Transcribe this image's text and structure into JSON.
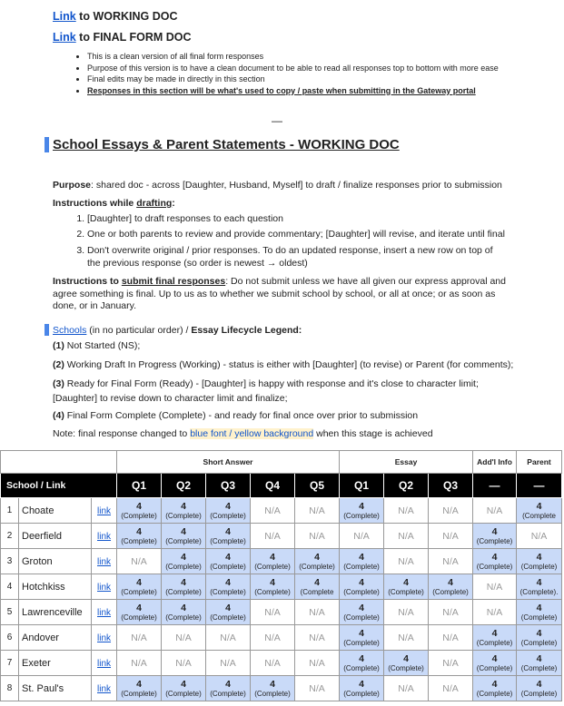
{
  "links": [
    {
      "link": "Link",
      "text": " to WORKING DOC"
    },
    {
      "link": "Link",
      "text": " to FINAL FORM DOC"
    }
  ],
  "bullets": [
    "This is a clean version of all final form responses",
    "Purpose of this version is to have a clean document to be able to read all responses top to bottom with more ease",
    "Final edits may be made in directly in this section",
    "Responses in this section will be what's used to copy / paste when submitting in the Gateway portal"
  ],
  "separator": "—",
  "heading": "School Essays & Parent Statements - WORKING DOC",
  "purpose": {
    "label": "Purpose",
    "text": ": shared doc - across [Daughter, Husband, Myself] to draft / finalize responses prior to submission"
  },
  "drafting": {
    "prefix": "Instructions while ",
    "emph": "drafting",
    "suffix": ":",
    "steps": [
      "[Daughter] to draft responses to each question",
      "One or both parents to review and provide commentary; [Daughter] will revise, and iterate until final",
      "Don't overwrite original / prior responses. To do an updated response, insert a new row on top of the previous response (so order is newest → oldest)"
    ]
  },
  "submit": {
    "prefix": "Instructions to ",
    "emph": "submit final responses",
    "text": ": Do not submit unless we have all given our express approval and agree something is final. Up to us as to whether we submit school by school, or all at once; or as soon as done, or in January."
  },
  "legend": {
    "link": "Schools",
    "text": " (in no particular order) / ",
    "title": "Essay Lifecycle Legend:",
    "stages": [
      {
        "num": "(1)",
        "text": " Not Started (NS);"
      },
      {
        "num": "(2)",
        "text": " Working Draft In Progress (Working) - status is either with [Daughter] (to revise) or Parent (for comments);"
      },
      {
        "num": "(3)",
        "text": " Ready for Final Form (Ready) - [Daughter] is happy with response and it's close to character limit; [Daughter] to revise down to character limit and finalize;"
      },
      {
        "num": "(4)",
        "text": " Final Form Complete (Complete) - and ready for final once over prior to submission"
      }
    ],
    "note": {
      "text": "Note: final response changed to ",
      "highlight": "blue font / yellow background",
      "suffix": " when this stage is achieved"
    }
  },
  "table": {
    "header_groups": [
      "Short Answer",
      "Essay",
      "Add'l Info",
      "Parent"
    ],
    "columns": [
      "School / Link",
      "Q1",
      "Q2",
      "Q3",
      "Q4",
      "Q5",
      "Q1",
      "Q2",
      "Q3",
      "—",
      "—"
    ],
    "rows": [
      {
        "num": 1,
        "school": "Choate",
        "link": "link",
        "cells": [
          {
            "score": 4,
            "status": "(Complete)"
          },
          {
            "score": 4,
            "status": "(Complete)"
          },
          {
            "score": 4,
            "status": "(Complete)"
          },
          "N/A",
          "N/A",
          {
            "score": 4,
            "status": "(Complete)"
          },
          "N/A",
          "N/A",
          "N/A",
          {
            "score": 4,
            "status": "(Complete"
          }
        ]
      },
      {
        "num": 2,
        "school": "Deerfield",
        "link": "link",
        "cells": [
          {
            "score": 4,
            "status": "(Complete)"
          },
          {
            "score": 4,
            "status": "(Complete)"
          },
          {
            "score": 4,
            "status": "(Complete)"
          },
          "N/A",
          "N/A",
          "N/A",
          "N/A",
          "N/A",
          {
            "score": 4,
            "status": "(Complete)"
          },
          "N/A"
        ]
      },
      {
        "num": 3,
        "school": "Groton",
        "link": "link",
        "cells": [
          "N/A",
          {
            "score": 4,
            "status": "(Complete)"
          },
          {
            "score": 4,
            "status": "(Complete)"
          },
          {
            "score": 4,
            "status": "(Complete)"
          },
          {
            "score": 4,
            "status": "(Complete)"
          },
          {
            "score": 4,
            "status": "(Complete)"
          },
          "N/A",
          "N/A",
          {
            "score": 4,
            "status": "(Complete)"
          },
          {
            "score": 4,
            "status": "(Complete)"
          }
        ]
      },
      {
        "num": 4,
        "school": "Hotchkiss",
        "link": "link",
        "cells": [
          {
            "score": 4,
            "status": "(Complete)"
          },
          {
            "score": 4,
            "status": "(Complete)"
          },
          {
            "score": 4,
            "status": "(Complete)"
          },
          {
            "score": 4,
            "status": "(Complete)"
          },
          {
            "score": 4,
            "status": "(Complete"
          },
          {
            "score": 4,
            "status": "(Complete)"
          },
          {
            "score": 4,
            "status": "(Complete)"
          },
          {
            "score": 4,
            "status": "(Complete)"
          },
          "N/A",
          {
            "score": 4,
            "status": "(Complete)."
          }
        ]
      },
      {
        "num": 5,
        "school": "Lawrenceville",
        "link": "link",
        "cells": [
          {
            "score": 4,
            "status": "(Complete)"
          },
          {
            "score": 4,
            "status": "(Complete)"
          },
          {
            "score": 4,
            "status": "(Complete)"
          },
          "N/A",
          "N/A",
          {
            "score": 4,
            "status": "(Complete)"
          },
          "N/A",
          "N/A",
          "N/A",
          {
            "score": 4,
            "status": "(Complete)"
          }
        ]
      },
      {
        "num": 6,
        "school": "Andover",
        "link": "link",
        "cells": [
          "N/A",
          "N/A",
          "N/A",
          "N/A",
          "N/A",
          {
            "score": 4,
            "status": "(Complete)"
          },
          "N/A",
          "N/A",
          {
            "score": 4,
            "status": "(Complete)"
          },
          {
            "score": 4,
            "status": "(Complete)"
          }
        ]
      },
      {
        "num": 7,
        "school": "Exeter",
        "link": "link",
        "cells": [
          "N/A",
          "N/A",
          "N/A",
          "N/A",
          "N/A",
          {
            "score": 4,
            "status": "(Complete)"
          },
          {
            "score": 4,
            "status": "(Complete)"
          },
          "N/A",
          {
            "score": 4,
            "status": "(Complete)"
          },
          {
            "score": 4,
            "status": "(Complete)"
          }
        ]
      },
      {
        "num": 8,
        "school": "St. Paul's",
        "link": "link",
        "cells": [
          {
            "score": 4,
            "status": "(Complete)"
          },
          {
            "score": 4,
            "status": "(Complete)"
          },
          {
            "score": 4,
            "status": "(Complete)"
          },
          {
            "score": 4,
            "status": "(Complete)"
          },
          "N/A",
          {
            "score": 4,
            "status": "(Complete)"
          },
          "N/A",
          "N/A",
          {
            "score": 4,
            "status": "(Complete)"
          },
          {
            "score": 4,
            "status": "(Complete)"
          }
        ]
      }
    ]
  }
}
